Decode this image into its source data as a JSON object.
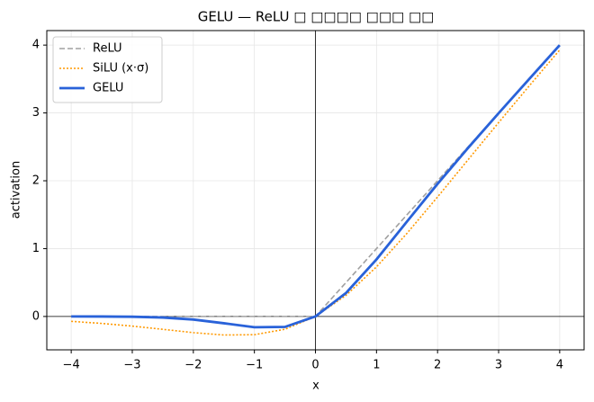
{
  "chart_data": {
    "type": "line",
    "title": "GELU — ReLU □ □□□□ □□□ □□",
    "xlabel": "x",
    "ylabel": "activation",
    "x": [
      -4,
      -3.5,
      -3,
      -2.5,
      -2,
      -1.5,
      -1,
      -0.5,
      0,
      0.5,
      1,
      1.5,
      2,
      2.5,
      3,
      3.5,
      4
    ],
    "series": [
      {
        "name": "ReLU",
        "color": "#a0a0a0",
        "dash": "6,3",
        "width": 1.6,
        "values": [
          0,
          0,
          0,
          0,
          0,
          0,
          0,
          0,
          0,
          0.5,
          1,
          1.5,
          2,
          2.5,
          3,
          3.5,
          4
        ]
      },
      {
        "name": "SiLU (x·σ)",
        "color": "#ff9900",
        "dash": "2,2",
        "width": 1.6,
        "values": [
          -0.0719,
          -0.1026,
          -0.1423,
          -0.1897,
          -0.2384,
          -0.2736,
          -0.2689,
          -0.1888,
          0,
          0.3112,
          0.7311,
          1.2264,
          1.7616,
          2.3103,
          2.8577,
          3.3974,
          3.9281
        ]
      },
      {
        "name": "GELU",
        "color": "#2962d9",
        "dash": "",
        "width": 2.8,
        "values": [
          -0.0001,
          -0.0008,
          -0.004,
          -0.0155,
          -0.0455,
          -0.1002,
          -0.1587,
          -0.1543,
          0,
          0.3457,
          0.8413,
          1.3998,
          1.9545,
          2.4845,
          2.996,
          3.4992,
          3.9999
        ]
      }
    ],
    "xlim": [
      -4.4,
      4.4
    ],
    "ylim": [
      -0.492,
      4.214
    ],
    "xticks": [
      {
        "value": -4,
        "label": "−4"
      },
      {
        "value": -3,
        "label": "−3"
      },
      {
        "value": -2,
        "label": "−2"
      },
      {
        "value": -1,
        "label": "−1"
      },
      0,
      1,
      2,
      3,
      4
    ],
    "yticks": [
      0,
      1,
      2,
      3,
      4
    ],
    "grid": true,
    "legend": "upper-left"
  }
}
